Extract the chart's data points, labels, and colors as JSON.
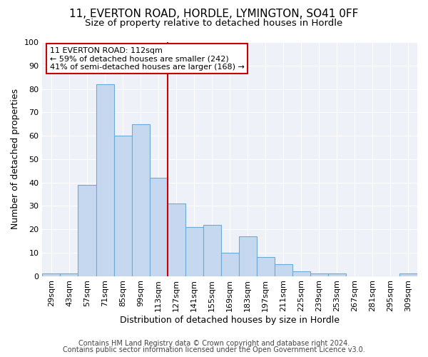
{
  "title1": "11, EVERTON ROAD, HORDLE, LYMINGTON, SO41 0FF",
  "title2": "Size of property relative to detached houses in Hordle",
  "xlabel": "Distribution of detached houses by size in Hordle",
  "ylabel": "Number of detached properties",
  "bar_labels": [
    "29sqm",
    "43sqm",
    "57sqm",
    "71sqm",
    "85sqm",
    "99sqm",
    "113sqm",
    "127sqm",
    "141sqm",
    "155sqm",
    "169sqm",
    "183sqm",
    "197sqm",
    "211sqm",
    "225sqm",
    "239sqm",
    "253sqm",
    "267sqm",
    "281sqm",
    "295sqm",
    "309sqm"
  ],
  "bar_values": [
    1,
    1,
    39,
    82,
    60,
    65,
    42,
    31,
    21,
    22,
    10,
    17,
    8,
    5,
    2,
    1,
    1,
    0,
    0,
    0,
    1
  ],
  "bar_color": "#c5d8f0",
  "bar_edge_color": "#6aaad4",
  "red_line_index": 6,
  "annotation_title": "11 EVERTON ROAD: 112sqm",
  "annotation_line2": "← 59% of detached houses are smaller (242)",
  "annotation_line3": "41% of semi-detached houses are larger (168) →",
  "annotation_box_facecolor": "#ffffff",
  "annotation_box_edgecolor": "#cc0000",
  "red_line_color": "#cc0000",
  "ylim": [
    0,
    100
  ],
  "yticks": [
    0,
    10,
    20,
    30,
    40,
    50,
    60,
    70,
    80,
    90,
    100
  ],
  "footer1": "Contains HM Land Registry data © Crown copyright and database right 2024.",
  "footer2": "Contains public sector information licensed under the Open Government Licence v3.0.",
  "bg_color": "#ffffff",
  "plot_bg_color": "#eef2f8",
  "grid_color": "#ffffff",
  "title1_fontsize": 11,
  "title2_fontsize": 9.5,
  "axis_label_fontsize": 9,
  "tick_fontsize": 8,
  "annotation_fontsize": 8,
  "footer_fontsize": 7
}
